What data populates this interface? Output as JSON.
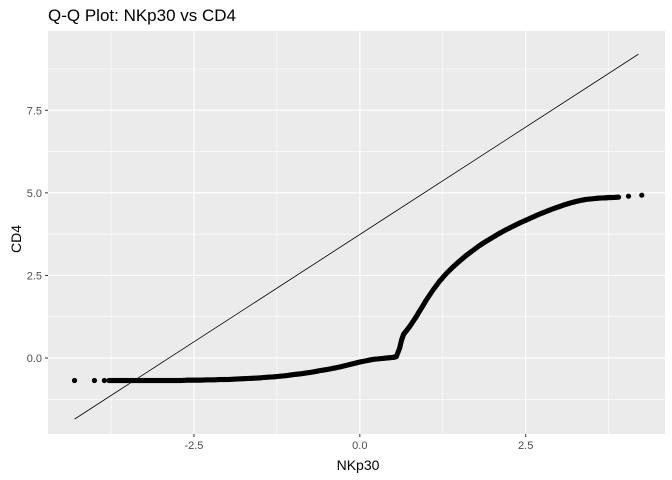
{
  "chart_data": {
    "type": "scatter",
    "title": "Q-Q Plot: NKp30 vs CD4",
    "xlabel": "NKp30",
    "ylabel": "CD4",
    "xlim": [
      -4.7,
      4.6
    ],
    "ylim": [
      -2.3,
      9.9
    ],
    "x_ticks": [
      {
        "value": -2.5,
        "label": "-2.5"
      },
      {
        "value": 0.0,
        "label": "0.0"
      },
      {
        "value": 2.5,
        "label": "2.5"
      }
    ],
    "y_ticks": [
      {
        "value": 0.0,
        "label": "0.0"
      },
      {
        "value": 2.5,
        "label": "2.5"
      },
      {
        "value": 5.0,
        "label": "5.0"
      },
      {
        "value": 7.5,
        "label": "7.5"
      }
    ],
    "grid": true,
    "legend": "none",
    "colors": {
      "panel": "#ebebeb",
      "grid_major": "#ffffff",
      "points": "#000000",
      "reference_line": "#000000"
    },
    "reference_line": {
      "x": [
        -4.3,
        4.2
      ],
      "y": [
        -1.85,
        9.2
      ]
    },
    "series": [
      {
        "x": [
          -4.3,
          -4.0,
          -3.85,
          -3.78,
          -3.7,
          -3.6,
          -3.5,
          -3.4,
          -3.3,
          -3.2,
          -3.1,
          -3.0,
          -2.9,
          -2.8,
          -2.7,
          -2.6,
          -2.5,
          -2.4,
          -2.3,
          -2.2,
          -2.1,
          -2.0,
          -1.9,
          -1.8,
          -1.7,
          -1.6,
          -1.5,
          -1.4,
          -1.3,
          -1.2,
          -1.1,
          -1.0,
          -0.9,
          -0.8,
          -0.7,
          -0.6,
          -0.5,
          -0.4,
          -0.3,
          -0.2,
          -0.1,
          0.0,
          0.1,
          0.2,
          0.3,
          0.4,
          0.5,
          0.55,
          0.6,
          0.63,
          0.66,
          0.7,
          0.75,
          0.8,
          0.85,
          0.9,
          0.95,
          1.0,
          1.1,
          1.2,
          1.3,
          1.4,
          1.5,
          1.6,
          1.7,
          1.8,
          1.9,
          2.0,
          2.1,
          2.2,
          2.3,
          2.4,
          2.5,
          2.6,
          2.7,
          2.8,
          2.9,
          3.0,
          3.1,
          3.2,
          3.3,
          3.4,
          3.5,
          3.6,
          3.7,
          3.75,
          3.8,
          3.9,
          4.05,
          4.25
        ],
        "y": [
          -0.68,
          -0.68,
          -0.68,
          -0.68,
          -0.68,
          -0.68,
          -0.68,
          -0.68,
          -0.68,
          -0.68,
          -0.68,
          -0.68,
          -0.68,
          -0.68,
          -0.68,
          -0.67,
          -0.67,
          -0.67,
          -0.66,
          -0.66,
          -0.65,
          -0.65,
          -0.64,
          -0.63,
          -0.62,
          -0.61,
          -0.6,
          -0.58,
          -0.57,
          -0.55,
          -0.53,
          -0.5,
          -0.48,
          -0.45,
          -0.42,
          -0.38,
          -0.35,
          -0.31,
          -0.27,
          -0.22,
          -0.17,
          -0.12,
          -0.08,
          -0.04,
          -0.02,
          0.0,
          0.02,
          0.04,
          0.3,
          0.55,
          0.72,
          0.82,
          0.95,
          1.1,
          1.25,
          1.42,
          1.58,
          1.75,
          2.05,
          2.32,
          2.55,
          2.75,
          2.93,
          3.1,
          3.25,
          3.4,
          3.53,
          3.65,
          3.77,
          3.88,
          3.98,
          4.08,
          4.17,
          4.26,
          4.35,
          4.43,
          4.51,
          4.58,
          4.65,
          4.71,
          4.76,
          4.8,
          4.82,
          4.84,
          4.85,
          4.86,
          4.86,
          4.87,
          4.9,
          4.93
        ]
      }
    ]
  }
}
